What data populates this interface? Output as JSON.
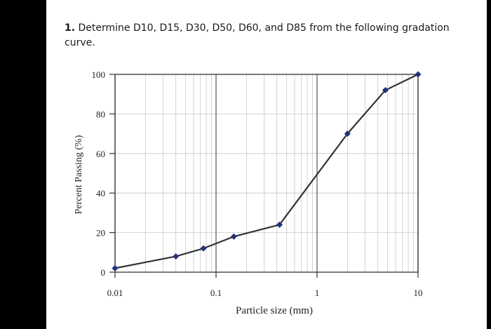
{
  "question": {
    "number": "1.",
    "text": "Determine D10, D15, D30, D50, D60, and D85 from the following gradation curve."
  },
  "chart_data": {
    "type": "line",
    "title": "",
    "xlabel": "Particle size (mm)",
    "ylabel": "Percent Passing (%)",
    "x_scale": "log",
    "xlim": [
      0.01,
      10
    ],
    "ylim": [
      0,
      100
    ],
    "x_ticks": [
      0.01,
      0.1,
      1,
      10
    ],
    "x_tick_labels": [
      "0.01",
      "0.1",
      "1",
      "10"
    ],
    "y_ticks": [
      0,
      20,
      40,
      60,
      80,
      100
    ],
    "y_tick_labels": [
      "0",
      "20",
      "40",
      "60",
      "80",
      "100"
    ],
    "grid": true,
    "series": [
      {
        "x": [
          0.01,
          0.04,
          0.075,
          0.15,
          0.425,
          2,
          4.75,
          10
        ],
        "y": [
          2,
          8,
          12,
          18,
          24,
          70,
          92,
          100
        ]
      }
    ],
    "colors": {
      "line": "#333333",
      "marker": "#23307a",
      "grid": "#c8c8c8",
      "major_grid": "#555555"
    }
  }
}
